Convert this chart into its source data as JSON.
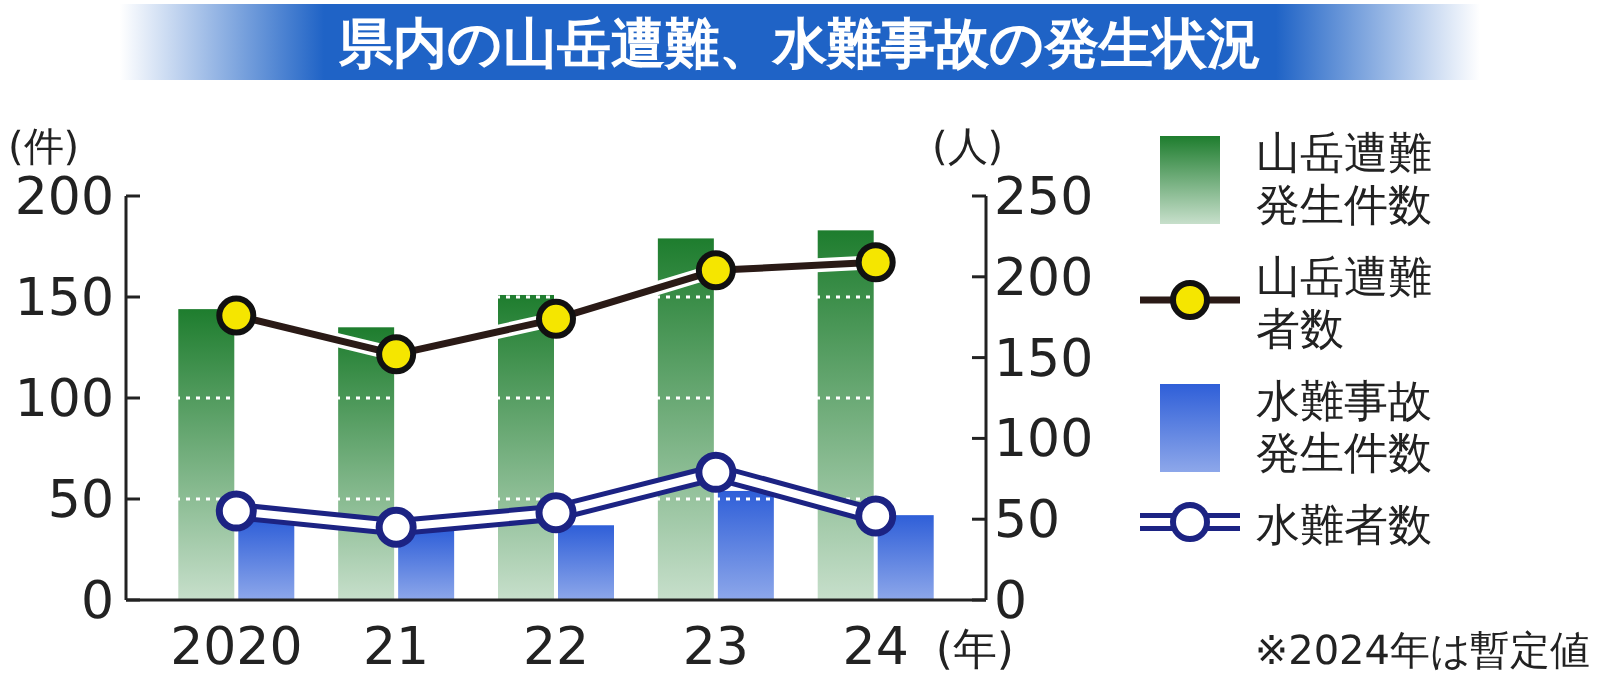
{
  "chart_data": {
    "type": "bar",
    "title": "県内の山岳遭難、水難事故の発生状況",
    "categories": [
      "2020",
      "21",
      "22",
      "23",
      "24"
    ],
    "xlabel": "(年)",
    "ylabel": "(件)",
    "y2label": "(人)",
    "ylim": [
      0,
      200
    ],
    "yticks": [
      0,
      50,
      100,
      150,
      200
    ],
    "y2lim": [
      0,
      250
    ],
    "y2ticks": [
      0,
      50,
      100,
      150,
      200,
      250
    ],
    "grid": "y",
    "legend": "right",
    "marker": "circle",
    "series": [
      {
        "name": "山岳遭難発生件数",
        "color": "#1e7d2e",
        "values": [
          144,
          135,
          151,
          179,
          183
        ]
      },
      {
        "name": "山岳遭難者数",
        "type": "line",
        "axis": "y2",
        "color": "#f5e600",
        "values": [
          176,
          152,
          174,
          204,
          209
        ]
      },
      {
        "name": "水難事故発生件数",
        "color": "#2f5fd8",
        "values": [
          40,
          35,
          37,
          54,
          42
        ]
      },
      {
        "name": "水難者数",
        "type": "line",
        "axis": "y2",
        "color": "#1c2383",
        "values": [
          55,
          45,
          54,
          79,
          52
        ]
      }
    ],
    "annotations": [
      "※2024年は暫定値"
    ]
  }
}
